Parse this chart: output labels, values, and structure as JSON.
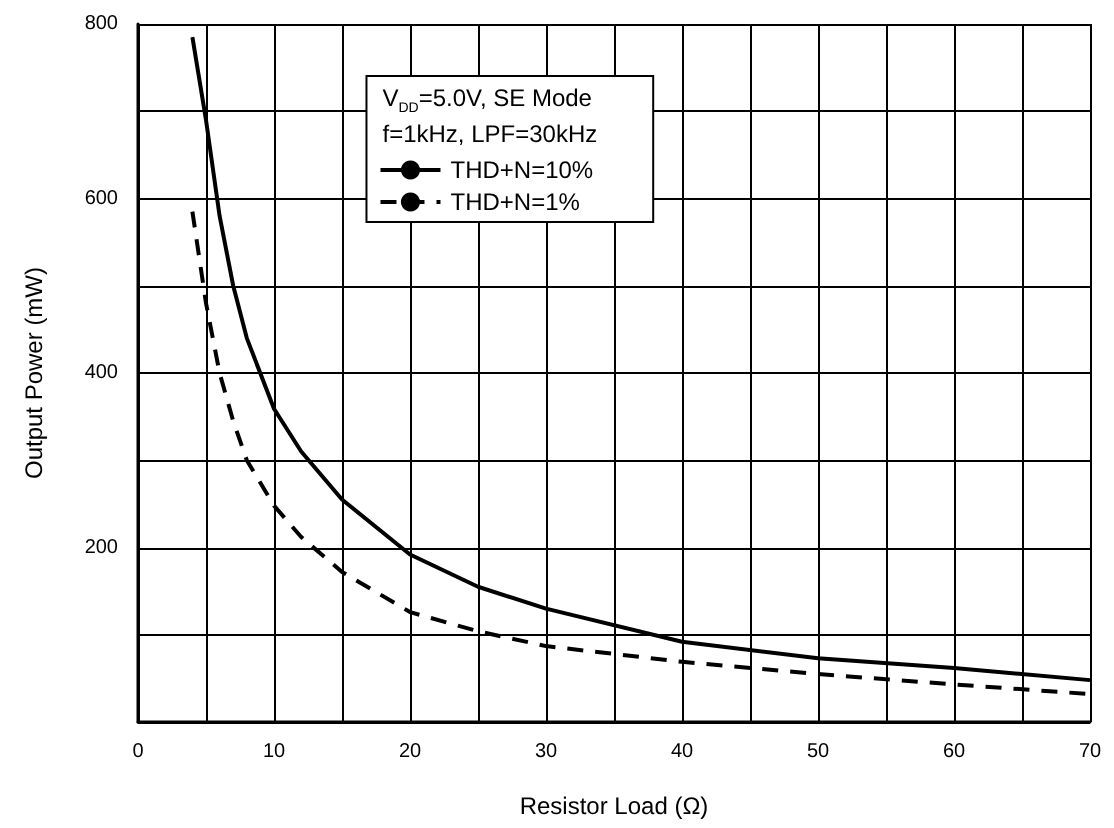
{
  "chart_data": {
    "type": "line",
    "xlabel": "Resistor Load (Ω)",
    "ylabel": "Output Power (mW)",
    "legend_title": "V$_{DD}$=5.0V, SE Mode",
    "annotations": [
      "f=1kHz, LPF=30kHz"
    ],
    "x": [
      4,
      5,
      6,
      7,
      8,
      10,
      12,
      15,
      20,
      25,
      30,
      40,
      50,
      60,
      70
    ],
    "series": [
      {
        "name": "THD+N=10%",
        "color": "#000000",
        "line_style": "solid",
        "values": [
          785,
          690,
          580,
          500,
          440,
          359,
          310,
          255,
          192,
          155,
          130,
          92,
          73,
          62,
          48
        ]
      },
      {
        "name": "THD+N=1%",
        "color": "#000000",
        "line_style": "dashed",
        "values": [
          585,
          480,
          400,
          345,
          300,
          248,
          212,
          172,
          126,
          104,
          87,
          69,
          55,
          43,
          32
        ]
      }
    ],
    "xlim": [
      0,
      70
    ],
    "xticks": [
      0,
      {
        "value": 5,
        "label": null
      },
      10,
      {
        "value": 15,
        "label": null
      },
      20,
      {
        "value": 25,
        "label": null
      },
      30,
      {
        "value": 35,
        "label": null
      },
      40,
      {
        "value": 45,
        "label": null
      },
      50,
      {
        "value": 55,
        "label": null
      },
      60,
      {
        "value": 65,
        "label": null
      },
      70
    ],
    "ylim": [
      0,
      800
    ],
    "yticks": [
      {
        "value": 0,
        "label": null
      },
      {
        "value": 100,
        "label": null
      },
      200,
      {
        "value": 300,
        "label": null
      },
      400,
      {
        "value": 500,
        "label": null
      },
      600,
      {
        "value": 700,
        "label": null
      },
      800
    ],
    "grid": true,
    "legend": "top left",
    "marker": "none"
  }
}
